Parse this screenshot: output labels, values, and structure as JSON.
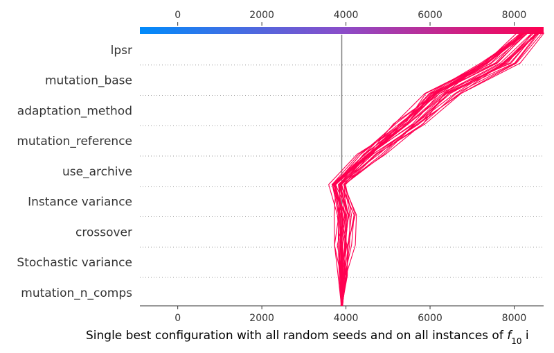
{
  "chart_data": {
    "type": "line",
    "subtype": "shap-decision-plot",
    "xlabel": "Single best configuration with all random seeds and on all instances of ",
    "xlabel_math": "f",
    "xlabel_math_sub": "10",
    "xlabel_tail": " i",
    "features": [
      "lpsr",
      "mutation_base",
      "adaptation_method",
      "mutation_reference",
      "use_archive",
      "Instance variance",
      "crossover",
      "Stochastic variance",
      "mutation_n_comps"
    ],
    "x_ticks": [
      0,
      2000,
      4000,
      6000,
      8000
    ],
    "x_tick_labels": [
      "0",
      "2000",
      "4000",
      "6000",
      "8000"
    ],
    "xlim": [
      -900,
      8700
    ],
    "base_value": 3900,
    "colorbar_range": [
      -900,
      8700
    ],
    "color_low": "#008bfb",
    "color_mid": "#8a4dc9",
    "color_high": "#ff0051",
    "line_color": "#ff0051",
    "base_line_color": "#808080",
    "grid_style": "dotted",
    "series_count": 30,
    "series_profile": {
      "levels_bottom_to_top": [
        3900,
        3920,
        3960,
        3960,
        3820,
        4600,
        5500,
        6300,
        7600,
        8400
      ],
      "spread": [
        25,
        120,
        240,
        260,
        220,
        340,
        360,
        420,
        520,
        300
      ]
    }
  }
}
